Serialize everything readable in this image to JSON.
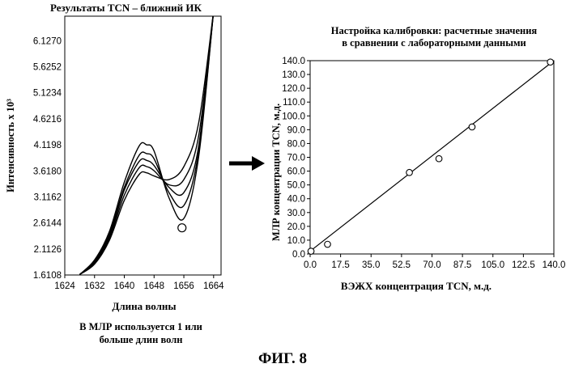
{
  "figure_label": "ФИГ. 8",
  "chart_data": [
    {
      "type": "line",
      "title": "Результаты TCN – ближний ИК",
      "xlabel": "Длина волны",
      "ylabel": "Интенсивность x 10³",
      "caption_line1": "В МЛР используется 1 или",
      "caption_line2": "больше длин волн",
      "x_ticks": [
        "1624",
        "1632",
        "1640",
        "1648",
        "1656",
        "1664"
      ],
      "y_ticks": [
        "1.6108",
        "2.1126",
        "2.6144",
        "3.1162",
        "3.6180",
        "4.1198",
        "4.6216",
        "5.1234",
        "5.6252",
        "6.1270"
      ],
      "xlim": [
        1624,
        1666
      ],
      "ylim": [
        1.6108,
        6.6
      ],
      "x": [
        1628,
        1632,
        1636,
        1640,
        1644,
        1646,
        1648,
        1652,
        1656,
        1660,
        1664
      ],
      "series": [
        {
          "values": [
            1.62,
            1.9,
            2.45,
            3.4,
            4.1,
            4.12,
            4.0,
            3.1,
            2.7,
            3.9,
            6.7
          ]
        },
        {
          "values": [
            1.62,
            1.88,
            2.4,
            3.3,
            3.92,
            3.95,
            3.85,
            3.2,
            2.95,
            4.0,
            6.7
          ]
        },
        {
          "values": [
            1.62,
            1.86,
            2.36,
            3.25,
            3.8,
            3.82,
            3.72,
            3.3,
            3.2,
            4.1,
            6.7
          ]
        },
        {
          "values": [
            1.62,
            1.84,
            2.32,
            3.15,
            3.68,
            3.7,
            3.62,
            3.35,
            3.45,
            4.3,
            6.7
          ]
        },
        {
          "values": [
            1.62,
            1.82,
            2.28,
            3.05,
            3.55,
            3.58,
            3.52,
            3.45,
            3.7,
            4.55,
            6.7
          ]
        }
      ],
      "marker": {
        "x": 1655.5,
        "y": 2.52
      },
      "grid": false
    },
    {
      "type": "scatter",
      "title_line1": "Настройка калибровки: расчетные значения",
      "title_line2": "в сравнении с лабораторными данными",
      "xlabel": "ВЭЖХ концентрация TCN, м.д.",
      "ylabel": "МЛР концентрации TCN, м.д.",
      "x_ticks": [
        "0.0",
        "17.5",
        "35.0",
        "52.5",
        "70.0",
        "87.5",
        "105.0",
        "122.5",
        "140.0"
      ],
      "y_ticks": [
        "0.0",
        "10.0",
        "20.0",
        "30.0",
        "40.0",
        "50.0",
        "60.0",
        "70.0",
        "80.0",
        "90.0",
        "100.0",
        "110.0",
        "120.0",
        "130.0",
        "140.0"
      ],
      "xlim": [
        0,
        140
      ],
      "ylim": [
        0,
        140
      ],
      "points": [
        {
          "x": 0.5,
          "y": 2
        },
        {
          "x": 10,
          "y": 7
        },
        {
          "x": 57,
          "y": 59
        },
        {
          "x": 74,
          "y": 69
        },
        {
          "x": 93,
          "y": 92
        },
        {
          "x": 138,
          "y": 139
        }
      ],
      "fit_line": {
        "x": [
          0,
          140
        ],
        "y": [
          2,
          141
        ]
      },
      "grid": false
    }
  ],
  "arrow": {
    "direction": "right"
  }
}
